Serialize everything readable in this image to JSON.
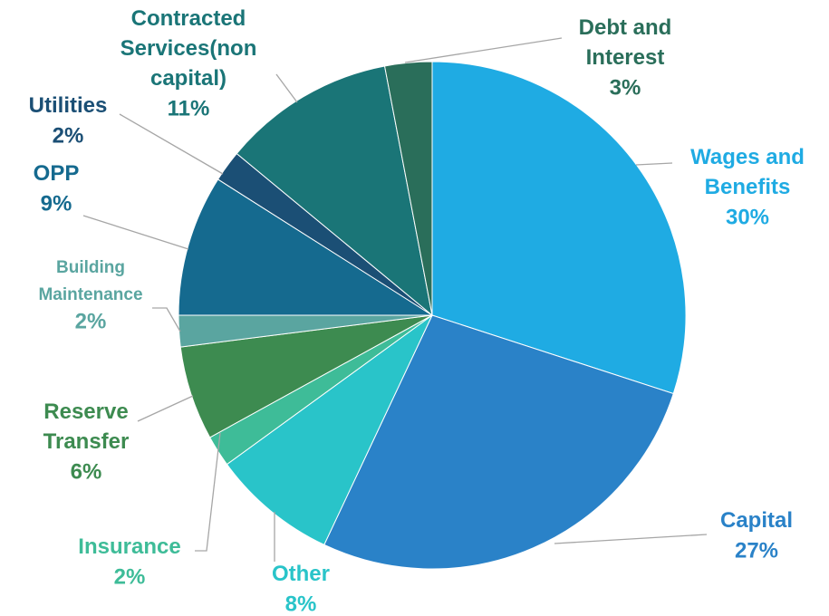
{
  "chart_data": {
    "type": "pie",
    "categories": [
      "Wages and Benefits",
      "Capital",
      "Other",
      "Insurance",
      "Reserve Transfer",
      "Building Maintenance",
      "OPP",
      "Utilities",
      "Contracted Services(non capital)",
      "Debt and Interest"
    ],
    "values": [
      30,
      27,
      8,
      2,
      6,
      2,
      9,
      2,
      11,
      3
    ],
    "value_labels": [
      "30%",
      "27%",
      "8%",
      "2%",
      "6%",
      "2%",
      "9%",
      "2%",
      "11%",
      "3%"
    ],
    "colors": [
      "#1fabe3",
      "#2a82c8",
      "#29c4c9",
      "#3ebc98",
      "#3d8b50",
      "#5aa5a0",
      "#156a8f",
      "#1b4f75",
      "#1a7577",
      "#2a6e5a"
    ]
  }
}
